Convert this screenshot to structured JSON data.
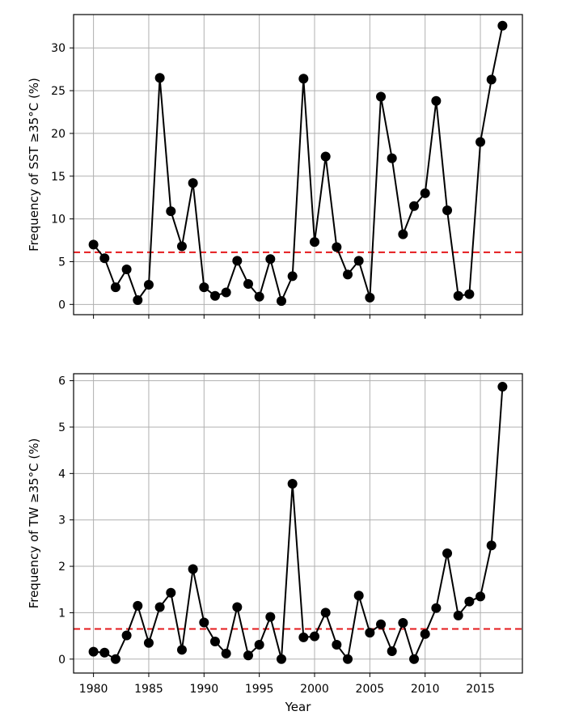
{
  "chart_data": [
    {
      "type": "line",
      "ylabel": "Frequency of SST  ≥35°C (%)",
      "xlabel": "",
      "ylim": [
        -1.2,
        33.9
      ],
      "yticks": [
        0,
        5,
        10,
        15,
        20,
        25,
        30
      ],
      "xlim": [
        1978.2,
        2018.8
      ],
      "xticks": [
        1980,
        1985,
        1990,
        1995,
        2000,
        2005,
        2010,
        2015
      ],
      "show_xtick_labels": false,
      "grid": true,
      "threshold": 6.1,
      "colors": {
        "series": "#000000",
        "threshold": "#e41a1c",
        "grid": "#b0b0b0"
      },
      "series": [
        {
          "x": [
            1980,
            1981,
            1982,
            1983,
            1984,
            1985,
            1986,
            1987,
            1988,
            1989,
            1990,
            1991,
            1992,
            1993,
            1994,
            1995,
            1996,
            1997,
            1998,
            1999,
            2000,
            2001,
            2002,
            2003,
            2004,
            2005,
            2006,
            2007,
            2008,
            2009,
            2010,
            2011,
            2012,
            2013,
            2014,
            2015,
            2016,
            2017
          ],
          "values": [
            7.0,
            5.4,
            2.0,
            4.1,
            0.5,
            2.3,
            26.5,
            10.9,
            6.8,
            14.2,
            2.0,
            1.0,
            1.4,
            5.1,
            2.4,
            0.9,
            5.3,
            0.4,
            3.3,
            26.4,
            7.3,
            17.3,
            6.7,
            3.5,
            5.1,
            0.8,
            24.3,
            17.1,
            8.2,
            11.5,
            13.0,
            23.8,
            11.0,
            1.0,
            1.2,
            19.0,
            26.3,
            32.6
          ]
        }
      ]
    },
    {
      "type": "line",
      "ylabel": "Frequency of TW  ≥35°C (%)",
      "xlabel": "Year",
      "ylim": [
        -0.3,
        6.15
      ],
      "yticks": [
        0,
        1,
        2,
        3,
        4,
        5,
        6
      ],
      "xlim": [
        1978.2,
        2018.8
      ],
      "xticks": [
        1980,
        1985,
        1990,
        1995,
        2000,
        2005,
        2010,
        2015
      ],
      "show_xtick_labels": true,
      "grid": true,
      "threshold": 0.65,
      "colors": {
        "series": "#000000",
        "threshold": "#e41a1c",
        "grid": "#b0b0b0"
      },
      "series": [
        {
          "x": [
            1980,
            1981,
            1982,
            1983,
            1984,
            1985,
            1986,
            1987,
            1988,
            1989,
            1990,
            1991,
            1992,
            1993,
            1994,
            1995,
            1996,
            1997,
            1998,
            1999,
            2000,
            2001,
            2002,
            2003,
            2004,
            2005,
            2006,
            2007,
            2008,
            2009,
            2010,
            2011,
            2012,
            2013,
            2014,
            2015,
            2016,
            2017
          ],
          "values": [
            0.16,
            0.14,
            0.0,
            0.51,
            1.15,
            0.35,
            1.12,
            1.43,
            0.2,
            1.94,
            0.79,
            0.38,
            0.12,
            1.12,
            0.08,
            0.31,
            0.91,
            0.0,
            3.78,
            0.47,
            0.49,
            1.0,
            0.31,
            0.0,
            1.37,
            0.57,
            0.75,
            0.17,
            0.78,
            0.0,
            0.54,
            1.1,
            2.28,
            0.94,
            1.24,
            1.35,
            2.45,
            5.87
          ]
        }
      ]
    }
  ]
}
